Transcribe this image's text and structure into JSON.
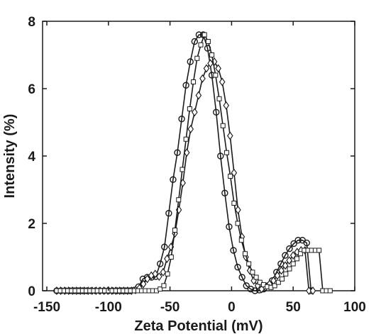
{
  "chart_data": {
    "type": "line",
    "xlabel": "Zeta Potential (mV)",
    "ylabel": "Intensity (%)",
    "xlim": [
      -150,
      100
    ],
    "ylim": [
      0,
      8
    ],
    "xticks": [
      -150,
      -100,
      -50,
      0,
      50,
      100
    ],
    "yticks": [
      0,
      2,
      4,
      6,
      8
    ],
    "xtick_labels": [
      "-150",
      "-100",
      "-50",
      "0",
      "50",
      "100"
    ],
    "ytick_labels": [
      "0",
      "2",
      "4",
      "6",
      "8"
    ],
    "grid": false,
    "color": "#1a1a1a",
    "series": [
      {
        "marker": "circle",
        "x": [
          -142,
          -138.5,
          -135,
          -131.5,
          -128,
          -124.5,
          -121,
          -117.5,
          -114,
          -110.5,
          -107,
          -103.5,
          -100,
          -96.5,
          -93,
          -89.5,
          -86,
          -82.5,
          -79,
          -75.5,
          -72,
          -68.5,
          -65,
          -61.5,
          -58,
          -54.5,
          -51,
          -47.5,
          -44,
          -40.5,
          -37,
          -33.5,
          -30,
          -26.5,
          -23,
          -19.5,
          -16,
          -12.5,
          -9,
          -5.5,
          -2,
          1.5,
          5,
          8.5,
          12,
          15.5,
          19,
          22.5,
          26,
          29.5,
          33,
          36.5,
          40,
          43.5,
          47,
          50.5,
          54,
          57.5,
          61,
          64.5
        ],
        "y": [
          0,
          0,
          0,
          0,
          0,
          0,
          0,
          0,
          0,
          0,
          0,
          0,
          0,
          0,
          0,
          0,
          0,
          0,
          0.02,
          0.12,
          0.35,
          0.4,
          0.4,
          0.42,
          0.8,
          1.3,
          2.3,
          3.3,
          4.1,
          5.1,
          6.1,
          6.8,
          7.4,
          7.6,
          7.6,
          7.2,
          6.4,
          5.3,
          4,
          2.9,
          1.9,
          1.2,
          0.7,
          0.4,
          0.15,
          0.05,
          0,
          0.02,
          0.05,
          0.15,
          0.3,
          0.55,
          0.8,
          1.05,
          1.25,
          1.4,
          1.5,
          1.5,
          1.42,
          0
        ]
      },
      {
        "marker": "diamond",
        "x": [
          -142,
          -138.8,
          -135.6,
          -132.4,
          -129.2,
          -126,
          -122.8,
          -119.6,
          -116.4,
          -113.2,
          -110,
          -106.8,
          -103.6,
          -100.4,
          -97.2,
          -94,
          -90.8,
          -87.6,
          -84.4,
          -81.2,
          -78,
          -74.8,
          -71.6,
          -68.4,
          -65.2,
          -62,
          -58.8,
          -55.6,
          -52.4,
          -49.2,
          -46,
          -42.8,
          -39.6,
          -36.4,
          -33.2,
          -30,
          -26.8,
          -23.6,
          -20.4,
          -17.2,
          -14,
          -10.8,
          -7.6,
          -4.4,
          -1.2,
          2,
          5.2,
          8.4,
          11.6,
          14.8,
          18,
          21.2,
          24.4,
          27.6,
          30.8,
          34,
          37.2,
          40.4,
          43.6,
          46.8,
          50,
          53.2,
          56.4,
          59.6,
          62.8,
          66
        ],
        "y": [
          0,
          0,
          0,
          0,
          0,
          0,
          0,
          0,
          0,
          0,
          0,
          0,
          0,
          0,
          0,
          0,
          0,
          0,
          0,
          0,
          0.02,
          0.08,
          0.2,
          0.35,
          0.45,
          0.5,
          0.42,
          0.55,
          0.95,
          1.3,
          1.7,
          2.4,
          3.2,
          4.1,
          4.8,
          5.3,
          5.8,
          6.3,
          6.6,
          6.75,
          6.8,
          6.6,
          6.2,
          5.5,
          4.6,
          3.5,
          2.4,
          1.6,
          1,
          0.6,
          0.3,
          0.15,
          0.05,
          0.1,
          0.2,
          0.3,
          0.45,
          0.6,
          0.75,
          0.9,
          1.05,
          1.15,
          1.2,
          1.2,
          0,
          0
        ]
      },
      {
        "marker": "square",
        "x": [
          -142,
          -139,
          -136,
          -133,
          -130,
          -127,
          -124,
          -121,
          -118,
          -115,
          -112,
          -109,
          -106,
          -103,
          -100,
          -97,
          -94,
          -91,
          -88,
          -85,
          -82,
          -79,
          -76,
          -73,
          -70,
          -67,
          -64,
          -61,
          -58,
          -55,
          -52,
          -49,
          -46,
          -43,
          -40,
          -37,
          -34,
          -31,
          -28,
          -25,
          -22,
          -19,
          -16,
          -13,
          -10,
          -7,
          -4,
          -1,
          2,
          5,
          8,
          11,
          14,
          17,
          20,
          23,
          26,
          29,
          32,
          35,
          38,
          41,
          44,
          47,
          50,
          53,
          56,
          59,
          62,
          65,
          68,
          71,
          74,
          77,
          80
        ],
        "y": [
          0,
          0,
          0,
          0,
          0,
          0,
          0,
          0,
          0,
          0,
          0,
          0,
          0,
          0,
          0,
          0,
          0,
          0,
          0,
          0,
          0,
          0,
          0,
          0,
          0,
          0,
          0,
          0,
          0.05,
          0.15,
          0.5,
          1,
          1.8,
          2.7,
          3.6,
          4.5,
          5.4,
          6.2,
          6.9,
          7.3,
          7.6,
          7.4,
          7,
          6.4,
          5.7,
          4.9,
          4.1,
          3.4,
          2.6,
          2,
          1.5,
          1.1,
          0.8,
          0.55,
          0.4,
          0.25,
          0.18,
          0.12,
          0.1,
          0.15,
          0.25,
          0.35,
          0.5,
          0.65,
          0.8,
          0.95,
          1.1,
          1.2,
          1.2,
          1.2,
          1.2,
          1.2,
          0,
          0,
          0
        ]
      }
    ]
  }
}
